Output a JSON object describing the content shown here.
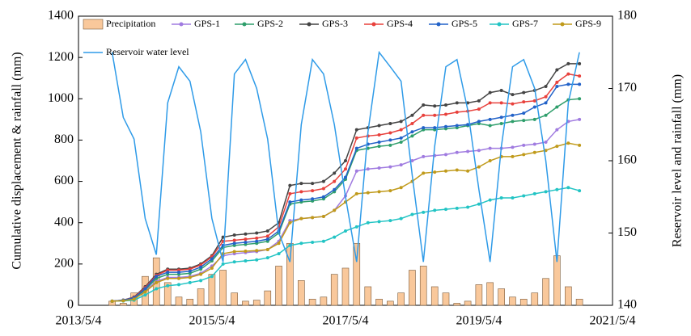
{
  "chart_data": {
    "type": "bar-line",
    "x": [
      "2013/11/4",
      "2014/1/4",
      "2014/3/4",
      "2014/5/4",
      "2014/7/4",
      "2014/9/4",
      "2014/11/4",
      "2015/1/4",
      "2015/3/4",
      "2015/5/4",
      "2015/7/4",
      "2015/9/4",
      "2015/11/4",
      "2016/1/4",
      "2016/3/4",
      "2016/5/4",
      "2016/7/4",
      "2016/9/4",
      "2016/11/4",
      "2017/1/4",
      "2017/3/4",
      "2017/5/4",
      "2017/7/4",
      "2017/9/4",
      "2017/11/4",
      "2018/1/4",
      "2018/3/4",
      "2018/5/4",
      "2018/7/4",
      "2018/9/4",
      "2018/11/4",
      "2019/1/4",
      "2019/3/4",
      "2019/5/4",
      "2019/7/4",
      "2019/9/4",
      "2019/11/4",
      "2020/1/4",
      "2020/3/4",
      "2020/5/4",
      "2020/7/4",
      "2020/9/4",
      "2020/11/4"
    ],
    "xlim": [
      "2013/5/4",
      "2021/5/4"
    ],
    "xticks": [
      "2013/5/4",
      "2015/5/4",
      "2017/5/4",
      "2019/5/4",
      "2021/5/4"
    ],
    "ylabel": "Cumulative displacement & rainfall (mm)",
    "y2label": "Reservoir level and rainfall  (mm)",
    "ylim": [
      0,
      1400
    ],
    "yticks": [
      0,
      200,
      400,
      600,
      800,
      1000,
      1200,
      1400
    ],
    "y2lim": [
      140,
      180
    ],
    "y2ticks": [
      140,
      150,
      160,
      170,
      180
    ],
    "series": [
      {
        "name": "Precipitation",
        "kind": "bar",
        "color": "#f9c89b",
        "values": [
          20,
          10,
          60,
          140,
          230,
          110,
          40,
          30,
          80,
          150,
          170,
          60,
          20,
          25,
          70,
          190,
          300,
          120,
          30,
          40,
          150,
          180,
          300,
          90,
          30,
          20,
          60,
          170,
          190,
          90,
          60,
          10,
          20,
          100,
          110,
          80,
          40,
          30,
          60,
          130,
          240,
          90,
          30
        ]
      },
      {
        "name": "GPS-1",
        "kind": "line",
        "color": "#a07be0",
        "values": [
          20,
          23,
          32,
          70,
          115,
          135,
          135,
          140,
          155,
          190,
          240,
          250,
          255,
          260,
          270,
          310,
          410,
          420,
          425,
          430,
          460,
          530,
          650,
          660,
          665,
          670,
          680,
          700,
          720,
          725,
          730,
          740,
          745,
          750,
          760,
          760,
          765,
          775,
          780,
          790,
          850,
          890,
          900
        ]
      },
      {
        "name": "GPS-2",
        "kind": "line",
        "color": "#2e9e6b",
        "values": [
          20,
          24,
          35,
          75,
          130,
          150,
          150,
          155,
          175,
          215,
          280,
          290,
          295,
          300,
          310,
          350,
          490,
          500,
          505,
          515,
          550,
          610,
          750,
          760,
          770,
          775,
          790,
          820,
          850,
          850,
          855,
          860,
          870,
          880,
          870,
          880,
          890,
          895,
          900,
          920,
          960,
          995,
          1000
        ]
      },
      {
        "name": "GPS-3",
        "kind": "line",
        "color": "#444444",
        "values": [
          20,
          25,
          40,
          90,
          150,
          175,
          175,
          180,
          200,
          240,
          330,
          340,
          345,
          350,
          360,
          400,
          580,
          590,
          590,
          600,
          640,
          700,
          850,
          860,
          870,
          880,
          890,
          920,
          970,
          965,
          970,
          980,
          980,
          990,
          1030,
          1040,
          1020,
          1030,
          1040,
          1060,
          1140,
          1170,
          1170
        ]
      },
      {
        "name": "GPS-4",
        "kind": "line",
        "color": "#e8413c",
        "values": [
          20,
          25,
          38,
          85,
          145,
          170,
          170,
          175,
          195,
          235,
          310,
          315,
          320,
          325,
          335,
          380,
          540,
          550,
          555,
          565,
          600,
          660,
          810,
          820,
          825,
          835,
          850,
          880,
          920,
          920,
          925,
          935,
          940,
          950,
          980,
          980,
          975,
          985,
          990,
          1010,
          1080,
          1120,
          1110
        ]
      },
      {
        "name": "GPS-5",
        "kind": "line",
        "color": "#2262c8",
        "values": [
          20,
          25,
          36,
          80,
          140,
          160,
          160,
          165,
          185,
          225,
          290,
          300,
          305,
          310,
          320,
          360,
          500,
          510,
          515,
          525,
          560,
          620,
          760,
          780,
          790,
          800,
          810,
          840,
          860,
          860,
          865,
          870,
          875,
          890,
          900,
          910,
          920,
          930,
          960,
          980,
          1060,
          1070,
          1070
        ]
      },
      {
        "name": "GPS-7",
        "kind": "line",
        "color": "#22c4c4",
        "values": [
          20,
          21,
          25,
          50,
          80,
          95,
          100,
          110,
          120,
          140,
          200,
          210,
          215,
          220,
          230,
          250,
          290,
          300,
          305,
          310,
          330,
          360,
          380,
          400,
          405,
          410,
          420,
          440,
          450,
          460,
          465,
          470,
          475,
          490,
          510,
          520,
          520,
          530,
          540,
          550,
          560,
          570,
          555
        ]
      },
      {
        "name": "GPS-9",
        "kind": "line",
        "color": "#c09a1a",
        "values": [
          20,
          22,
          30,
          65,
          110,
          130,
          130,
          135,
          150,
          180,
          250,
          260,
          262,
          265,
          270,
          300,
          400,
          420,
          425,
          430,
          460,
          500,
          540,
          545,
          550,
          555,
          570,
          600,
          640,
          645,
          650,
          655,
          650,
          670,
          700,
          720,
          720,
          730,
          740,
          750,
          770,
          785,
          775
        ]
      },
      {
        "name": "Reservoir water level",
        "kind": "line",
        "axis": "y2",
        "color": "#2f9be8",
        "values": [
          175,
          166,
          163,
          152,
          147,
          168,
          173,
          171,
          164,
          152,
          146,
          172,
          174,
          170,
          163,
          150,
          146,
          165,
          174,
          172,
          165,
          155,
          146,
          164,
          175,
          173,
          171,
          158,
          146,
          162,
          173,
          174,
          167,
          156,
          146,
          162,
          173,
          174,
          170,
          160,
          146,
          168,
          175
        ]
      }
    ]
  }
}
